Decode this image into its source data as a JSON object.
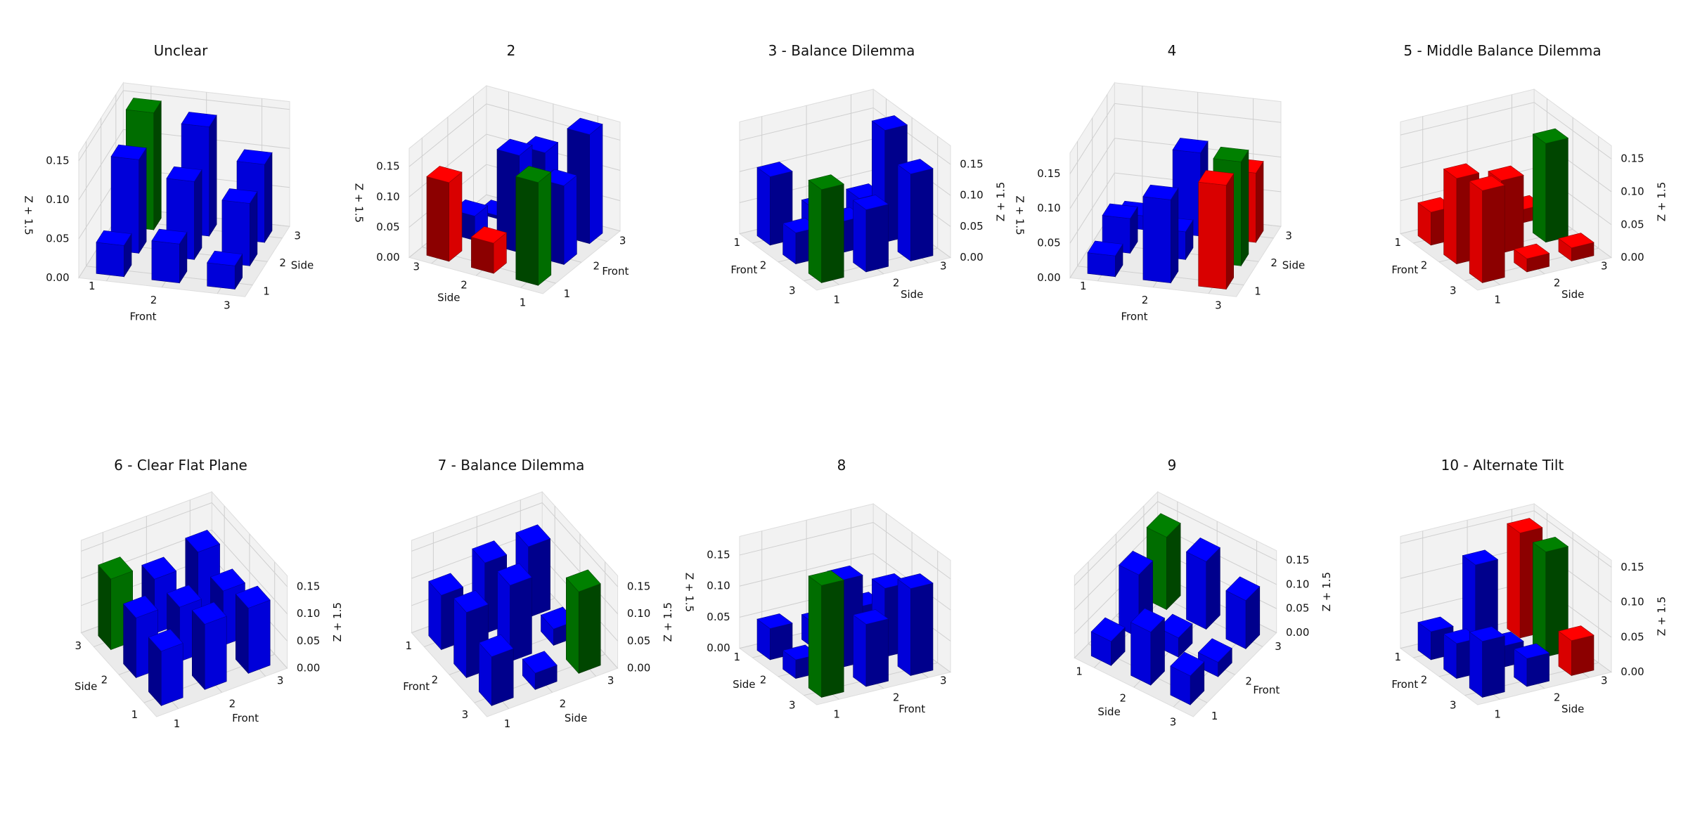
{
  "chart_data": [
    {
      "type": "bar3d",
      "title": "Unclear",
      "xlabel": "Front",
      "ylabel": "Side",
      "zlabel": "Z + 1.5",
      "x_ticks": [
        "1",
        "2",
        "3"
      ],
      "y_ticks": [
        "1",
        "2",
        "3"
      ],
      "z_ticks": [
        "0.00",
        "0.05",
        "0.10",
        "0.15"
      ],
      "zlim": [
        0,
        0.16
      ],
      "view": {
        "azim": -75,
        "elev": 25
      },
      "zaxis_side": "left",
      "bars": [
        {
          "front": 1,
          "side": 1,
          "z": 0.04,
          "color": "blue"
        },
        {
          "front": 2,
          "side": 1,
          "z": 0.05,
          "color": "blue"
        },
        {
          "front": 3,
          "side": 1,
          "z": 0.03,
          "color": "blue"
        },
        {
          "front": 1,
          "side": 2,
          "z": 0.12,
          "color": "blue"
        },
        {
          "front": 2,
          "side": 2,
          "z": 0.1,
          "color": "blue"
        },
        {
          "front": 3,
          "side": 2,
          "z": 0.08,
          "color": "blue"
        },
        {
          "front": 1,
          "side": 3,
          "z": 0.15,
          "color": "green"
        },
        {
          "front": 2,
          "side": 3,
          "z": 0.14,
          "color": "blue"
        },
        {
          "front": 3,
          "side": 3,
          "z": 0.1,
          "color": "blue"
        }
      ]
    },
    {
      "type": "bar3d",
      "title": "2",
      "xlabel": "Front",
      "ylabel": "Side",
      "zlabel": "Z + 1.5",
      "x_ticks": [
        "1",
        "2",
        "3"
      ],
      "y_ticks": [
        "1",
        "2",
        "3"
      ],
      "z_ticks": [
        "0.00",
        "0.05",
        "0.10",
        "0.15"
      ],
      "zlim": [
        0,
        0.18
      ],
      "view": {
        "azim": -150,
        "elev": 28
      },
      "zaxis_side": "left",
      "bars": [
        {
          "front": 3,
          "side": 1,
          "z": 0.18,
          "color": "blue"
        },
        {
          "front": 3,
          "side": 2,
          "z": 0.13,
          "color": "blue"
        },
        {
          "front": 3,
          "side": 3,
          "z": 0.005,
          "color": "blue"
        },
        {
          "front": 2,
          "side": 1,
          "z": 0.13,
          "color": "blue"
        },
        {
          "front": 2,
          "side": 2,
          "z": 0.16,
          "color": "blue"
        },
        {
          "front": 2,
          "side": 3,
          "z": 0.04,
          "color": "blue"
        },
        {
          "front": 1,
          "side": 1,
          "z": 0.17,
          "color": "green"
        },
        {
          "front": 1,
          "side": 2,
          "z": 0.05,
          "color": "red"
        },
        {
          "front": 1,
          "side": 3,
          "z": 0.13,
          "color": "red"
        }
      ]
    },
    {
      "type": "bar3d",
      "title": "3 - Balance Dilemma",
      "xlabel": "Front",
      "ylabel": "Side",
      "zlabel": "Z + 1.5",
      "x_ticks": [
        "1",
        "2",
        "3"
      ],
      "y_ticks": [
        "1",
        "2",
        "3"
      ],
      "z_ticks": [
        "0.00",
        "0.05",
        "0.10",
        "0.15"
      ],
      "zlim": [
        0,
        0.18
      ],
      "view": {
        "azim": -30,
        "elev": 25
      },
      "zaxis_side": "right",
      "bars": [
        {
          "front": 1,
          "side": 1,
          "z": 0.11,
          "color": "blue"
        },
        {
          "front": 2,
          "side": 1,
          "z": 0.05,
          "color": "blue"
        },
        {
          "front": 3,
          "side": 1,
          "z": 0.15,
          "color": "green"
        },
        {
          "front": 1,
          "side": 2,
          "z": 0.04,
          "color": "blue"
        },
        {
          "front": 2,
          "side": 2,
          "z": 0.05,
          "color": "blue"
        },
        {
          "front": 3,
          "side": 2,
          "z": 0.1,
          "color": "blue"
        },
        {
          "front": 1,
          "side": 3,
          "z": 0.04,
          "color": "blue"
        },
        {
          "front": 2,
          "side": 3,
          "z": 0.18,
          "color": "blue"
        },
        {
          "front": 3,
          "side": 3,
          "z": 0.14,
          "color": "blue"
        }
      ]
    },
    {
      "type": "bar3d",
      "title": "4",
      "xlabel": "Front",
      "ylabel": "Side",
      "zlabel": "Z + 1.5",
      "x_ticks": [
        "1",
        "2",
        "3"
      ],
      "y_ticks": [
        "1",
        "2",
        "3"
      ],
      "z_ticks": [
        "0.00",
        "0.05",
        "0.10",
        "0.15"
      ],
      "zlim": [
        0,
        0.18
      ],
      "view": {
        "azim": -75,
        "elev": 25
      },
      "zaxis_side": "left",
      "bars": [
        {
          "front": 1,
          "side": 1,
          "z": 0.03,
          "color": "blue"
        },
        {
          "front": 2,
          "side": 1,
          "z": 0.12,
          "color": "blue"
        },
        {
          "front": 3,
          "side": 1,
          "z": 0.15,
          "color": "red"
        },
        {
          "front": 1,
          "side": 2,
          "z": 0.05,
          "color": "blue"
        },
        {
          "front": 2,
          "side": 2,
          "z": 0.04,
          "color": "blue"
        },
        {
          "front": 3,
          "side": 2,
          "z": 0.15,
          "color": "green"
        },
        {
          "front": 1,
          "side": 3,
          "z": 0.02,
          "color": "blue"
        },
        {
          "front": 2,
          "side": 3,
          "z": 0.12,
          "color": "blue"
        },
        {
          "front": 3,
          "side": 3,
          "z": 0.1,
          "color": "red"
        }
      ]
    },
    {
      "type": "bar3d",
      "title": "5 - Middle Balance Dilemma",
      "xlabel": "Front",
      "ylabel": "Side",
      "zlabel": "Z + 1.5",
      "x_ticks": [
        "1",
        "2",
        "3"
      ],
      "y_ticks": [
        "1",
        "2",
        "3"
      ],
      "z_ticks": [
        "0.00",
        "0.05",
        "0.10",
        "0.15"
      ],
      "zlim": [
        0,
        0.17
      ],
      "view": {
        "azim": -30,
        "elev": 25
      },
      "zaxis_side": "right",
      "bars": [
        {
          "front": 1,
          "side": 1,
          "z": 0.05,
          "color": "red"
        },
        {
          "front": 2,
          "side": 1,
          "z": 0.13,
          "color": "red"
        },
        {
          "front": 3,
          "side": 1,
          "z": 0.14,
          "color": "red"
        },
        {
          "front": 1,
          "side": 2,
          "z": 0.03,
          "color": "red"
        },
        {
          "front": 2,
          "side": 2,
          "z": 0.11,
          "color": "red"
        },
        {
          "front": 3,
          "side": 2,
          "z": 0.02,
          "color": "red"
        },
        {
          "front": 1,
          "side": 3,
          "z": 0.02,
          "color": "red"
        },
        {
          "front": 2,
          "side": 3,
          "z": 0.15,
          "color": "green"
        },
        {
          "front": 3,
          "side": 3,
          "z": 0.02,
          "color": "red"
        }
      ]
    },
    {
      "type": "bar3d",
      "title": "6 - Clear Flat Plane",
      "xlabel": "Front",
      "ylabel": "Side",
      "zlabel": "Z + 1.5",
      "x_ticks": [
        "1",
        "2",
        "3"
      ],
      "y_ticks": [
        "1",
        "2",
        "3"
      ],
      "z_ticks": [
        "0.00",
        "0.05",
        "0.10",
        "0.15"
      ],
      "zlim": [
        0,
        0.17
      ],
      "view": {
        "azim": -120,
        "elev": 40
      },
      "zaxis_side": "right",
      "bars": [
        {
          "front": 1,
          "side": 1,
          "z": 0.1,
          "color": "blue"
        },
        {
          "front": 1,
          "side": 2,
          "z": 0.11,
          "color": "blue"
        },
        {
          "front": 1,
          "side": 3,
          "z": 0.13,
          "color": "green"
        },
        {
          "front": 2,
          "side": 1,
          "z": 0.12,
          "color": "blue"
        },
        {
          "front": 2,
          "side": 2,
          "z": 0.1,
          "color": "blue"
        },
        {
          "front": 2,
          "side": 3,
          "z": 0.1,
          "color": "blue"
        },
        {
          "front": 3,
          "side": 1,
          "z": 0.12,
          "color": "blue"
        },
        {
          "front": 3,
          "side": 2,
          "z": 0.1,
          "color": "blue"
        },
        {
          "front": 3,
          "side": 3,
          "z": 0.12,
          "color": "blue"
        }
      ]
    },
    {
      "type": "bar3d",
      "title": "7 - Balance Dilemma",
      "xlabel": "Front",
      "ylabel": "Side",
      "zlabel": "Z + 1.5",
      "x_ticks": [
        "1",
        "2",
        "3"
      ],
      "y_ticks": [
        "1",
        "2",
        "3"
      ],
      "z_ticks": [
        "0.00",
        "0.05",
        "0.10",
        "0.15"
      ],
      "zlim": [
        0,
        0.17
      ],
      "view": {
        "azim": -30,
        "elev": 40
      },
      "zaxis_side": "right",
      "bars": [
        {
          "front": 1,
          "side": 1,
          "z": 0.1,
          "color": "blue"
        },
        {
          "front": 2,
          "side": 1,
          "z": 0.12,
          "color": "blue"
        },
        {
          "front": 3,
          "side": 1,
          "z": 0.09,
          "color": "blue"
        },
        {
          "front": 1,
          "side": 2,
          "z": 0.13,
          "color": "blue"
        },
        {
          "front": 2,
          "side": 2,
          "z": 0.14,
          "color": "blue"
        },
        {
          "front": 3,
          "side": 2,
          "z": 0.03,
          "color": "blue"
        },
        {
          "front": 1,
          "side": 3,
          "z": 0.13,
          "color": "blue"
        },
        {
          "front": 2,
          "side": 3,
          "z": 0.03,
          "color": "blue"
        },
        {
          "front": 3,
          "side": 3,
          "z": 0.15,
          "color": "green"
        }
      ]
    },
    {
      "type": "bar3d",
      "title": "8",
      "xlabel": "Side",
      "ylabel": "Front",
      "zlabel": "Z + 1.5",
      "x_ticks": [
        "1",
        "2",
        "3"
      ],
      "y_ticks": [
        "1",
        "2",
        "3"
      ],
      "z_ticks": [
        "0.00",
        "0.05",
        "0.10",
        "0.15"
      ],
      "zlim": [
        0,
        0.18
      ],
      "view": {
        "azim": -30,
        "elev": 25
      },
      "zaxis_side": "left",
      "bars": [
        {
          "front": 1,
          "side": 1,
          "z": 0.05,
          "color": "blue"
        },
        {
          "front": 1,
          "side": 2,
          "z": 0.04,
          "color": "blue"
        },
        {
          "front": 1,
          "side": 3,
          "z": 0.05,
          "color": "blue"
        },
        {
          "front": 2,
          "side": 1,
          "z": 0.03,
          "color": "blue"
        },
        {
          "front": 2,
          "side": 2,
          "z": 0.14,
          "color": "blue"
        },
        {
          "front": 2,
          "side": 3,
          "z": 0.11,
          "color": "blue"
        },
        {
          "front": 3,
          "side": 1,
          "z": 0.18,
          "color": "green"
        },
        {
          "front": 3,
          "side": 2,
          "z": 0.1,
          "color": "blue"
        },
        {
          "front": 3,
          "side": 3,
          "z": 0.14,
          "color": "blue"
        }
      ]
    },
    {
      "type": "bar3d",
      "title": "9",
      "xlabel": "Side",
      "ylabel": "Front",
      "zlabel": "Z + 1.5",
      "x_ticks": [
        "1",
        "2",
        "3"
      ],
      "y_ticks": [
        "1",
        "2",
        "3"
      ],
      "z_ticks": [
        "0.00",
        "0.05",
        "0.10",
        "0.15"
      ],
      "zlim": [
        0,
        0.17
      ],
      "view": {
        "azim": -55,
        "elev": 45
      },
      "zaxis_side": "right",
      "bars": [
        {
          "front": 1,
          "side": 1,
          "z": 0.05,
          "color": "blue"
        },
        {
          "front": 1,
          "side": 2,
          "z": 0.13,
          "color": "blue"
        },
        {
          "front": 1,
          "side": 3,
          "z": 0.15,
          "color": "green"
        },
        {
          "front": 2,
          "side": 1,
          "z": 0.11,
          "color": "blue"
        },
        {
          "front": 2,
          "side": 2,
          "z": 0.04,
          "color": "blue"
        },
        {
          "front": 2,
          "side": 3,
          "z": 0.14,
          "color": "blue"
        },
        {
          "front": 3,
          "side": 1,
          "z": 0.06,
          "color": "blue"
        },
        {
          "front": 3,
          "side": 2,
          "z": 0.03,
          "color": "blue"
        },
        {
          "front": 3,
          "side": 3,
          "z": 0.1,
          "color": "blue"
        }
      ]
    },
    {
      "type": "bar3d",
      "title": "10 - Alternate Tilt",
      "xlabel": "Front",
      "ylabel": "Side",
      "zlabel": "Z + 1.5",
      "x_ticks": [
        "1",
        "2",
        "3"
      ],
      "y_ticks": [
        "1",
        "2",
        "3"
      ],
      "z_ticks": [
        "0.00",
        "0.05",
        "0.10",
        "0.15"
      ],
      "zlim": [
        0,
        0.16
      ],
      "view": {
        "azim": -30,
        "elev": 25
      },
      "zaxis_side": "right",
      "bars": [
        {
          "front": 1,
          "side": 1,
          "z": 0.04,
          "color": "blue"
        },
        {
          "front": 2,
          "side": 1,
          "z": 0.05,
          "color": "blue"
        },
        {
          "front": 3,
          "side": 1,
          "z": 0.08,
          "color": "blue"
        },
        {
          "front": 1,
          "side": 2,
          "z": 0.12,
          "color": "blue"
        },
        {
          "front": 2,
          "side": 2,
          "z": 0.03,
          "color": "blue"
        },
        {
          "front": 3,
          "side": 2,
          "z": 0.04,
          "color": "blue"
        },
        {
          "front": 1,
          "side": 3,
          "z": 0.15,
          "color": "red"
        },
        {
          "front": 2,
          "side": 3,
          "z": 0.15,
          "color": "green"
        },
        {
          "front": 3,
          "side": 3,
          "z": 0.05,
          "color": "red"
        }
      ]
    }
  ],
  "palette": {
    "blue": "#0000ff",
    "green": "#008000",
    "red": "#ff0000"
  }
}
